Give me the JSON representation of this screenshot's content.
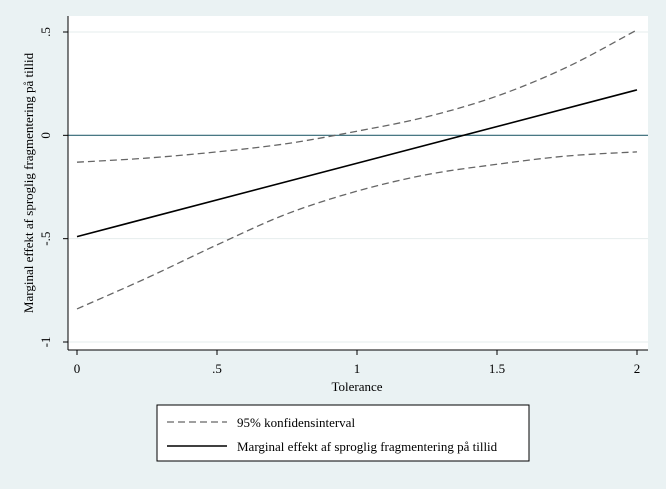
{
  "chart_data": {
    "type": "line",
    "title": "",
    "xlabel": "Tolerance",
    "ylabel": "Marginal effekt af sproglig fragmentering på tillid",
    "xlim": [
      0,
      2
    ],
    "ylim": [
      -1,
      0.5
    ],
    "x_ticks": [
      0,
      0.5,
      1,
      1.5,
      2
    ],
    "x_tick_labels": [
      "0",
      ".5",
      "1",
      "1.5",
      "2"
    ],
    "y_ticks": [
      -1,
      -0.5,
      0,
      0.5
    ],
    "y_tick_labels": [
      "-1",
      "-.5",
      "0",
      ".5"
    ],
    "grid": true,
    "reference_line_y": 0,
    "legend_position": "bottom",
    "series": [
      {
        "name": "95% konfidensinterval",
        "style": "dashed",
        "color": "#666666",
        "x": [
          0,
          0.25,
          0.5,
          0.75,
          1.0,
          1.25,
          1.5,
          1.75,
          2.0
        ],
        "values": [
          -0.13,
          -0.11,
          -0.08,
          -0.04,
          0.02,
          0.09,
          0.19,
          0.33,
          0.51
        ]
      },
      {
        "name": "95% konfidensinterval",
        "style": "dashed",
        "color": "#666666",
        "x": [
          0,
          0.25,
          0.5,
          0.75,
          1.0,
          1.25,
          1.5,
          1.75,
          2.0
        ],
        "values": [
          -0.84,
          -0.69,
          -0.53,
          -0.38,
          -0.27,
          -0.19,
          -0.14,
          -0.1,
          -0.08
        ]
      },
      {
        "name": "Marginal effekt af sproglig fragmentering på tillid",
        "style": "solid",
        "color": "#000000",
        "x": [
          0,
          2
        ],
        "values": [
          -0.49,
          0.22
        ]
      }
    ],
    "legend": [
      {
        "label": "95% konfidensinterval",
        "style": "dashed"
      },
      {
        "label": "Marginal effekt af sproglig fragmentering på tillid",
        "style": "solid"
      }
    ]
  }
}
